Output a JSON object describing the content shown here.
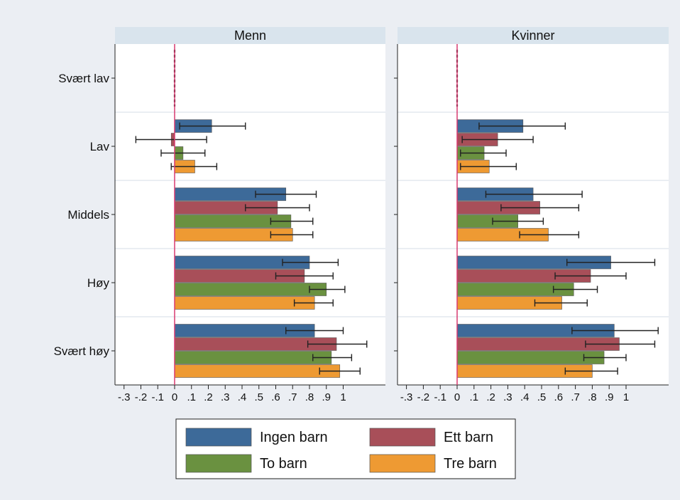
{
  "chart_data": {
    "type": "bar",
    "orientation": "horizontal",
    "panels": [
      "Menn",
      "Kvinner"
    ],
    "categories": [
      "Svært lav",
      "Lav",
      "Middels",
      "Høy",
      "Svært høy"
    ],
    "xlim": [
      -0.35,
      1.2
    ],
    "xticks": [
      -0.3,
      -0.2,
      -0.1,
      0,
      0.1,
      0.2,
      0.3,
      0.4,
      0.5,
      0.6,
      0.7,
      0.8,
      0.9,
      1
    ],
    "xtick_labels": [
      "-.3",
      "-.2",
      "-.1",
      "0",
      ".1",
      ".2",
      ".3",
      ".4",
      ".5",
      ".6",
      ".7",
      ".8",
      ".9",
      "1"
    ],
    "reference_line": 0,
    "legend_position": "bottom",
    "series": [
      {
        "name": "Ingen barn",
        "color": "#3d6a99",
        "values": {
          "Menn": [
            0,
            0.22,
            0.66,
            0.8,
            0.83
          ],
          "Kvinner": [
            0,
            0.39,
            0.45,
            0.91,
            0.93
          ]
        },
        "ci": {
          "Menn": [
            [
              0,
              0
            ],
            [
              0.03,
              0.42
            ],
            [
              0.48,
              0.84
            ],
            [
              0.64,
              0.97
            ],
            [
              0.66,
              1.0
            ]
          ],
          "Kvinner": [
            [
              0,
              0
            ],
            [
              0.13,
              0.64
            ],
            [
              0.17,
              0.74
            ],
            [
              0.65,
              1.17
            ],
            [
              0.68,
              1.19
            ]
          ]
        }
      },
      {
        "name": "Ett barn",
        "color": "#a84f59",
        "values": {
          "Menn": [
            0,
            -0.02,
            0.61,
            0.77,
            0.96
          ],
          "Kvinner": [
            0,
            0.24,
            0.49,
            0.79,
            0.96
          ]
        },
        "ci": {
          "Menn": [
            [
              0,
              0
            ],
            [
              -0.23,
              0.19
            ],
            [
              0.42,
              0.8
            ],
            [
              0.6,
              0.94
            ],
            [
              0.79,
              1.14
            ]
          ],
          "Kvinner": [
            [
              0,
              0
            ],
            [
              0.03,
              0.45
            ],
            [
              0.26,
              0.72
            ],
            [
              0.58,
              1.0
            ],
            [
              0.76,
              1.17
            ]
          ]
        }
      },
      {
        "name": "To barn",
        "color": "#6a9140",
        "values": {
          "Menn": [
            0,
            0.05,
            0.69,
            0.9,
            0.93
          ],
          "Kvinner": [
            0,
            0.16,
            0.36,
            0.69,
            0.87
          ]
        },
        "ci": {
          "Menn": [
            [
              0,
              0
            ],
            [
              -0.08,
              0.18
            ],
            [
              0.57,
              0.82
            ],
            [
              0.8,
              1.01
            ],
            [
              0.82,
              1.05
            ]
          ],
          "Kvinner": [
            [
              0,
              0
            ],
            [
              0.02,
              0.29
            ],
            [
              0.21,
              0.51
            ],
            [
              0.57,
              0.83
            ],
            [
              0.75,
              1.0
            ]
          ]
        }
      },
      {
        "name": "Tre barn",
        "color": "#ee9a33",
        "values": {
          "Menn": [
            0,
            0.12,
            0.7,
            0.83,
            0.98
          ],
          "Kvinner": [
            0,
            0.19,
            0.54,
            0.62,
            0.8
          ]
        },
        "ci": {
          "Menn": [
            [
              0,
              0
            ],
            [
              -0.02,
              0.25
            ],
            [
              0.57,
              0.82
            ],
            [
              0.71,
              0.94
            ],
            [
              0.86,
              1.1
            ]
          ],
          "Kvinner": [
            [
              0,
              0
            ],
            [
              0.02,
              0.35
            ],
            [
              0.37,
              0.72
            ],
            [
              0.46,
              0.77
            ],
            [
              0.64,
              0.95
            ]
          ]
        }
      }
    ]
  }
}
